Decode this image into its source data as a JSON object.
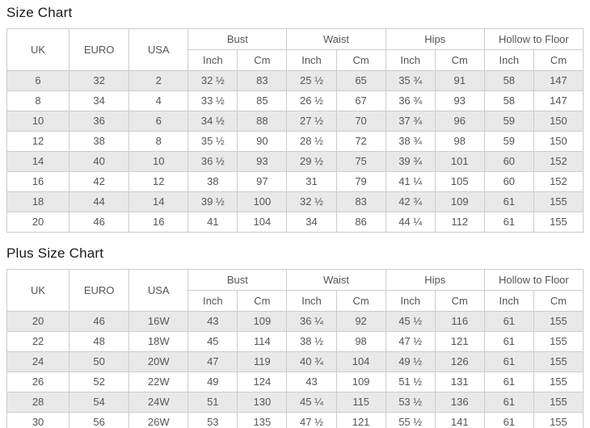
{
  "colors": {
    "page_bg": "#ffffff",
    "title": "#1a1a1a",
    "text": "#555555",
    "border": "#cccccc",
    "stripe": "#e9e9e9",
    "row_bg": "#ffffff"
  },
  "tables": [
    {
      "title": "Size Chart",
      "simple_columns": [
        "UK",
        "EURO",
        "USA"
      ],
      "group_columns": [
        "Bust",
        "Waist",
        "Hips",
        "Hollow to Floor"
      ],
      "sub_columns": [
        "Inch",
        "Cm"
      ],
      "rows": [
        [
          "6",
          "32",
          "2",
          "32 ½",
          "83",
          "25 ½",
          "65",
          "35 ¾",
          "91",
          "58",
          "147"
        ],
        [
          "8",
          "34",
          "4",
          "33 ½",
          "85",
          "26 ½",
          "67",
          "36 ¾",
          "93",
          "58",
          "147"
        ],
        [
          "10",
          "36",
          "6",
          "34 ½",
          "88",
          "27 ½",
          "70",
          "37 ¾",
          "96",
          "59",
          "150"
        ],
        [
          "12",
          "38",
          "8",
          "35 ½",
          "90",
          "28 ½",
          "72",
          "38 ¾",
          "98",
          "59",
          "150"
        ],
        [
          "14",
          "40",
          "10",
          "36 ½",
          "93",
          "29 ½",
          "75",
          "39 ¾",
          "101",
          "60",
          "152"
        ],
        [
          "16",
          "42",
          "12",
          "38",
          "97",
          "31",
          "79",
          "41 ¼",
          "105",
          "60",
          "152"
        ],
        [
          "18",
          "44",
          "14",
          "39 ½",
          "100",
          "32 ½",
          "83",
          "42 ¾",
          "109",
          "61",
          "155"
        ],
        [
          "20",
          "46",
          "16",
          "41",
          "104",
          "34",
          "86",
          "44 ¼",
          "112",
          "61",
          "155"
        ]
      ]
    },
    {
      "title": "Plus Size Chart",
      "simple_columns": [
        "UK",
        "EURO",
        "USA"
      ],
      "group_columns": [
        "Bust",
        "Waist",
        "Hips",
        "Hollow to Floor"
      ],
      "sub_columns": [
        "Inch",
        "Cm"
      ],
      "rows": [
        [
          "20",
          "46",
          "16W",
          "43",
          "109",
          "36 ¼",
          "92",
          "45 ½",
          "116",
          "61",
          "155"
        ],
        [
          "22",
          "48",
          "18W",
          "45",
          "114",
          "38 ½",
          "98",
          "47 ½",
          "121",
          "61",
          "155"
        ],
        [
          "24",
          "50",
          "20W",
          "47",
          "119",
          "40 ¾",
          "104",
          "49 ½",
          "126",
          "61",
          "155"
        ],
        [
          "26",
          "52",
          "22W",
          "49",
          "124",
          "43",
          "109",
          "51 ½",
          "131",
          "61",
          "155"
        ],
        [
          "28",
          "54",
          "24W",
          "51",
          "130",
          "45 ¼",
          "115",
          "53 ½",
          "136",
          "61",
          "155"
        ],
        [
          "30",
          "56",
          "26W",
          "53",
          "135",
          "47 ½",
          "121",
          "55 ½",
          "141",
          "61",
          "155"
        ]
      ]
    }
  ]
}
